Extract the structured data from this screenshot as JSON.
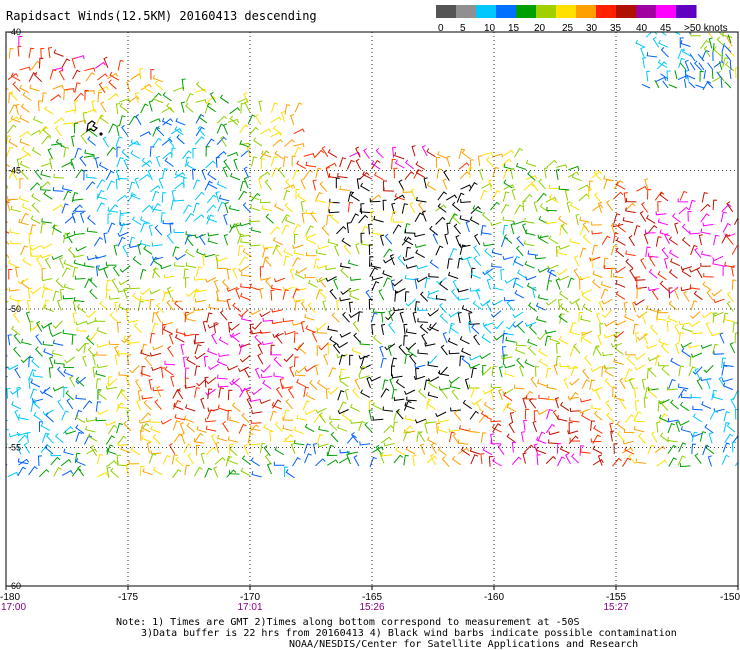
{
  "title": "Rapidsact Winds(12.5KM) 20160413 descending",
  "color_scale": {
    "labels": [
      "0",
      "5",
      "10",
      "15",
      "20",
      "25",
      "30",
      "35",
      "40",
      "45",
      ">50 knots"
    ],
    "colors": [
      "#555555",
      "#909090",
      "#00c8ff",
      "#0070ff",
      "#00a000",
      "#a0d000",
      "#ffe000",
      "#ffa000",
      "#ff2000",
      "#b01000",
      "#a000a0",
      "#ff00ff",
      "#6000c0"
    ]
  },
  "map": {
    "lon_range": [
      -180,
      -150
    ],
    "lat_range": [
      -40,
      -60
    ],
    "lon_ticks": [
      "-180",
      "-175",
      "-170",
      "-165",
      "-160",
      "-155",
      "-150"
    ],
    "lat_ticks": [
      "-40",
      "-45",
      "-50",
      "-55",
      "-60"
    ],
    "time_labels": [
      {
        "lon": -180,
        "text": "17:00"
      },
      {
        "lon": -170,
        "text": "17:01"
      },
      {
        "lon": -165,
        "text": "15:26"
      },
      {
        "lon": -155,
        "text": "15:27"
      }
    ],
    "time_color": "#8a008a",
    "grid": "dotted"
  },
  "notes": {
    "line1": "Note: 1) Times are GMT 2)Times along bottom correspond to measurement at -50S",
    "line2": "3)Data buffer is 22 hrs from 20160413 4) Black wind barbs indicate possible contamination",
    "line3": "NOAA/NESDIS/Center for Satellite Applications and Research"
  }
}
